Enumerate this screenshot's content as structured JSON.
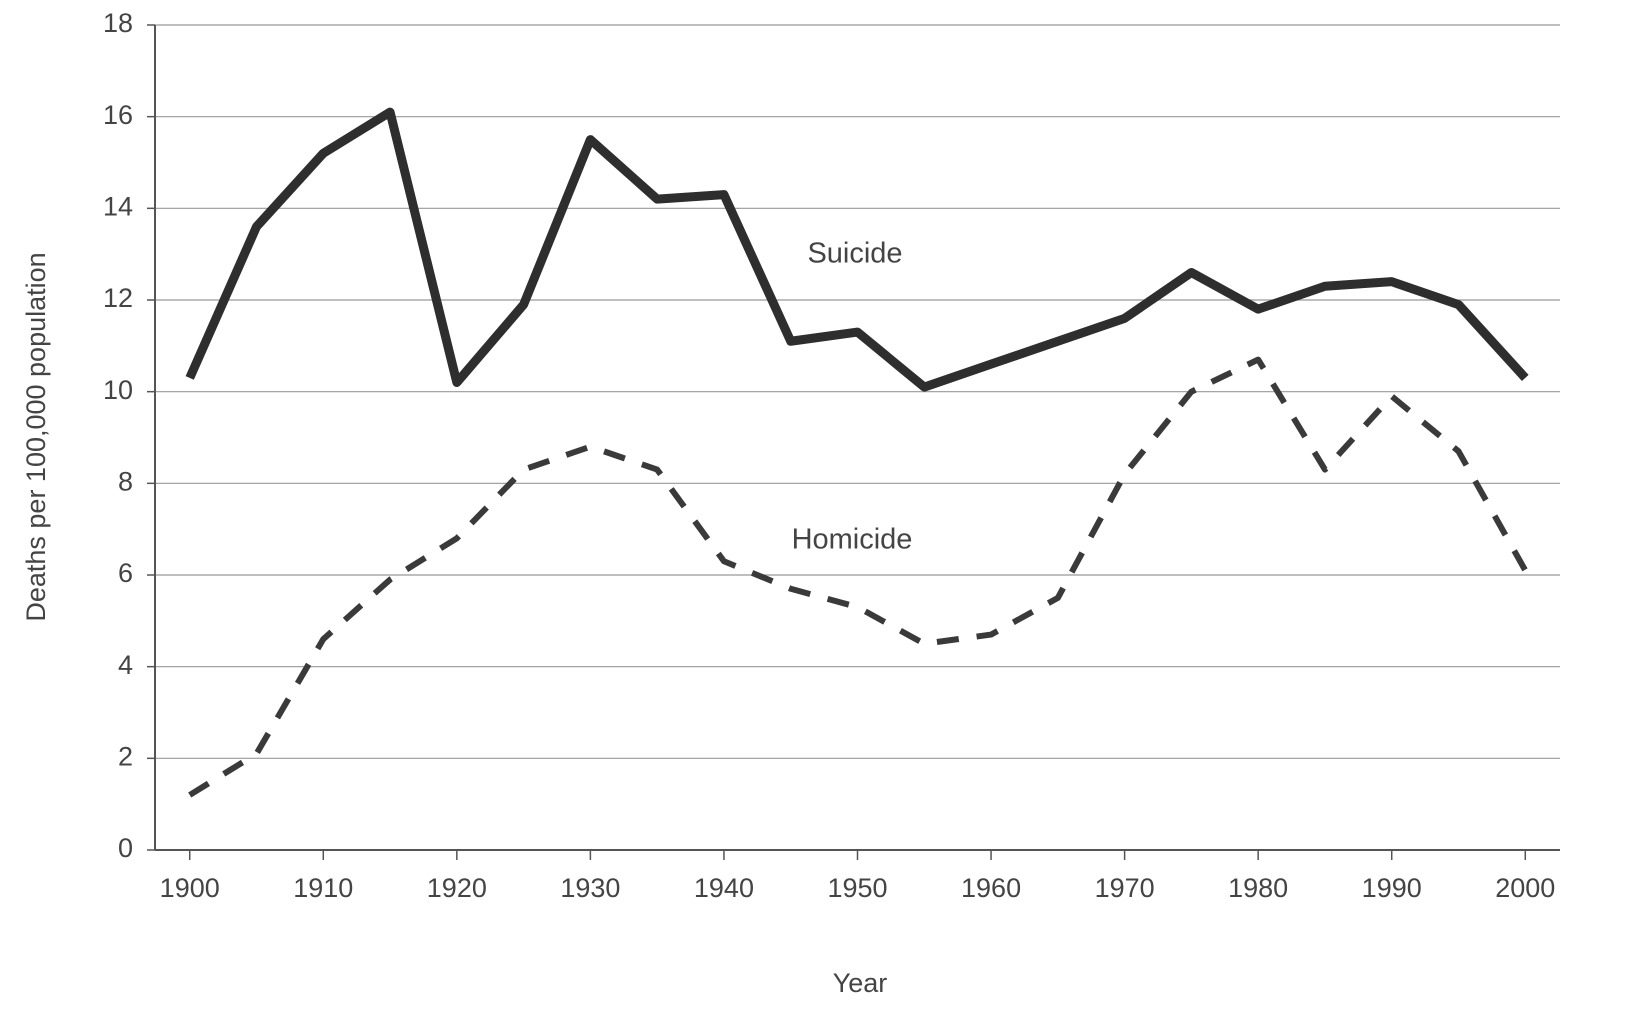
{
  "chart_data": {
    "type": "line",
    "x_label": "Year",
    "y_label": "Deaths per 100,000 population",
    "x": [
      1900,
      1905,
      1910,
      1915,
      1920,
      1925,
      1930,
      1935,
      1940,
      1945,
      1950,
      1955,
      1960,
      1965,
      1970,
      1975,
      1980,
      1985,
      1990,
      1995,
      2000
    ],
    "series": [
      {
        "name": "Suicide",
        "color": "#2e2e2e",
        "style": "solid",
        "values": [
          10.3,
          13.6,
          15.2,
          16.1,
          10.2,
          11.9,
          15.5,
          14.2,
          14.3,
          11.1,
          11.3,
          10.1,
          10.6,
          11.1,
          11.6,
          12.6,
          11.8,
          12.3,
          12.4,
          11.9,
          10.3
        ]
      },
      {
        "name": "Homicide",
        "color": "#3a3a3a",
        "style": "dashed",
        "values": [
          1.2,
          2.1,
          4.6,
          5.9,
          6.8,
          8.3,
          8.8,
          8.3,
          6.3,
          5.7,
          5.3,
          4.5,
          4.7,
          5.5,
          8.2,
          10.0,
          10.7,
          8.3,
          9.9,
          8.7,
          6.1
        ]
      }
    ],
    "xlim": [
      1897.4,
      2002.6
    ],
    "xticks": [
      1900,
      1910,
      1920,
      1930,
      1940,
      1950,
      1960,
      1970,
      1980,
      1990,
      2000
    ],
    "ylim": [
      0,
      18
    ],
    "yticks": [
      0,
      2,
      4,
      6,
      8,
      10,
      12,
      14,
      16,
      18
    ],
    "grid": true
  }
}
